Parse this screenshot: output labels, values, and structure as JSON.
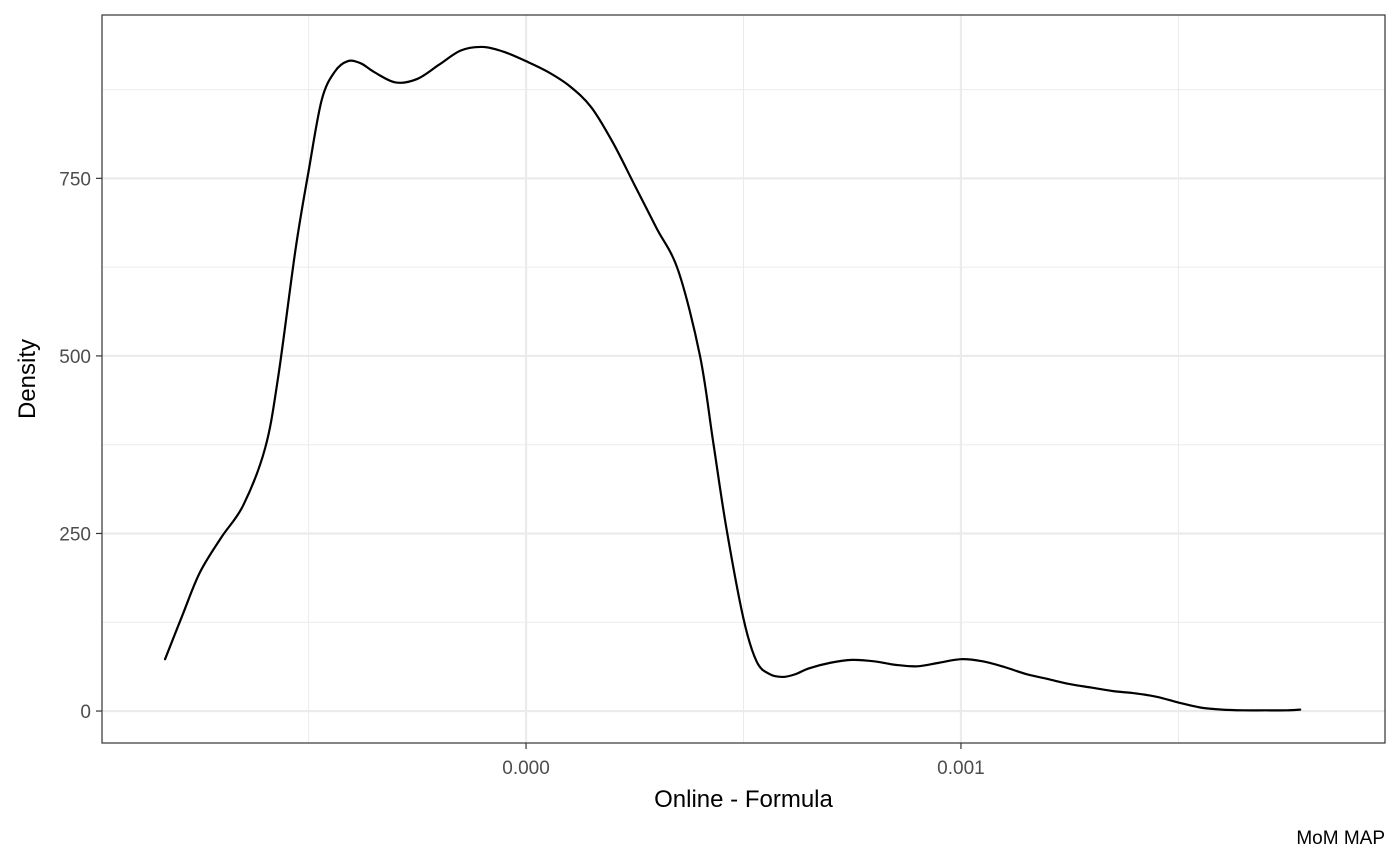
{
  "chart_data": {
    "type": "line",
    "xlabel": "Online - Formula",
    "ylabel": "Density",
    "caption": "MoM MAP",
    "xlim": [
      -0.000975,
      0.001975
    ],
    "ylim": [
      -45,
      980
    ],
    "x_ticks": [
      {
        "value": 0.0,
        "label": "0.000"
      },
      {
        "value": 0.001,
        "label": "0.001"
      }
    ],
    "x_minor_ticks": [
      -0.0005,
      0.0005,
      0.0015
    ],
    "y_ticks": [
      {
        "value": 0,
        "label": "0"
      },
      {
        "value": 250,
        "label": "250"
      },
      {
        "value": 500,
        "label": "500"
      },
      {
        "value": 750,
        "label": "750"
      }
    ],
    "y_minor_ticks": [
      125,
      375,
      625,
      875
    ],
    "grid": true,
    "colors": {
      "line": "#000000",
      "grid": "#ebebeb",
      "border": "#333333"
    },
    "series": [
      {
        "x": [
          -0.00083,
          -0.00079,
          -0.00075,
          -0.0007,
          -0.00065,
          -0.0006,
          -0.00057,
          -0.00053,
          -0.0005,
          -0.00047,
          -0.00044,
          -0.00041,
          -0.00038,
          -0.00035,
          -0.0003,
          -0.00025,
          -0.0002,
          -0.00015,
          -0.0001,
          -5e-05,
          0.0,
          5e-05,
          0.0001,
          0.00015,
          0.0002,
          0.00025,
          0.0003,
          0.00035,
          0.0004,
          0.00043,
          0.00046,
          0.0005,
          0.00053,
          0.00056,
          0.00059,
          0.00062,
          0.00065,
          0.0007,
          0.00075,
          0.0008,
          0.00085,
          0.0009,
          0.00095,
          0.001,
          0.00105,
          0.0011,
          0.00115,
          0.0012,
          0.00125,
          0.0013,
          0.00135,
          0.0014,
          0.00145,
          0.0015,
          0.00155,
          0.0016,
          0.00165,
          0.0017,
          0.00175,
          0.00178
        ],
        "y": [
          73,
          135,
          195,
          245,
          290,
          370,
          470,
          650,
          760,
          860,
          900,
          915,
          912,
          900,
          885,
          890,
          910,
          930,
          935,
          928,
          915,
          900,
          880,
          850,
          800,
          740,
          680,
          620,
          500,
          380,
          260,
          130,
          70,
          52,
          48,
          52,
          60,
          68,
          72,
          70,
          65,
          63,
          68,
          73,
          70,
          62,
          52,
          45,
          38,
          33,
          28,
          25,
          20,
          12,
          5,
          2,
          1,
          1,
          1,
          2
        ]
      }
    ]
  }
}
